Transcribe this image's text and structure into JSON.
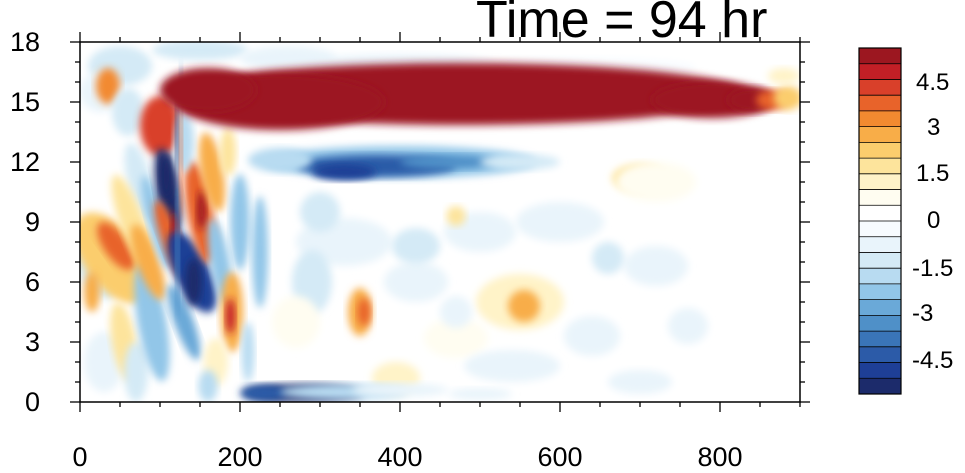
{
  "chart_data": {
    "type": "heatmap",
    "title": "Time = 94 hr",
    "xlabel": "",
    "ylabel": "",
    "xlim": [
      0,
      900
    ],
    "ylim": [
      0,
      18
    ],
    "x_ticks": [
      "0",
      "200",
      "400",
      "600",
      "800"
    ],
    "y_ticks": [
      "0",
      "3",
      "6",
      "9",
      "12",
      "15",
      "18"
    ],
    "colorbar": {
      "levels": [
        -5.5,
        -5,
        -4.5,
        -4,
        -3.5,
        -3,
        -2.5,
        -2,
        -1.5,
        -1,
        -0.5,
        0,
        0.5,
        1,
        1.5,
        2,
        2.5,
        3,
        3.5,
        4,
        4.5,
        5,
        5.5
      ],
      "labels": [
        "-4.5",
        "-3",
        "-1.5",
        "0",
        "1.5",
        "3",
        "4.5"
      ],
      "label_values": [
        -4.5,
        -3,
        -1.5,
        0,
        1.5,
        3,
        4.5
      ],
      "colors": [
        "#1c2b6b",
        "#1e3f96",
        "#2c5ba8",
        "#3a75b8",
        "#4f90c8",
        "#6aa9d8",
        "#92c6e8",
        "#b8dbf1",
        "#d4eaf6",
        "#e9f4fb",
        "#f7fbfe",
        "#ffffff",
        "#fffdf1",
        "#fff3c8",
        "#fde49c",
        "#fbcd6d",
        "#f8ad48",
        "#f28a30",
        "#e8632a",
        "#d9402a",
        "#c21f26",
        "#9c1720"
      ]
    },
    "features": [
      {
        "name": "upper positive band",
        "x": [
          90,
          870
        ],
        "y_center": 15.3,
        "value": 6
      },
      {
        "name": "negative band below",
        "x": [
          210,
          640
        ],
        "y_center": 12.0,
        "value": -3
      },
      {
        "name": "surface negative strip",
        "x": [
          200,
          420
        ],
        "y_center": 0.4,
        "value": -4
      }
    ]
  }
}
